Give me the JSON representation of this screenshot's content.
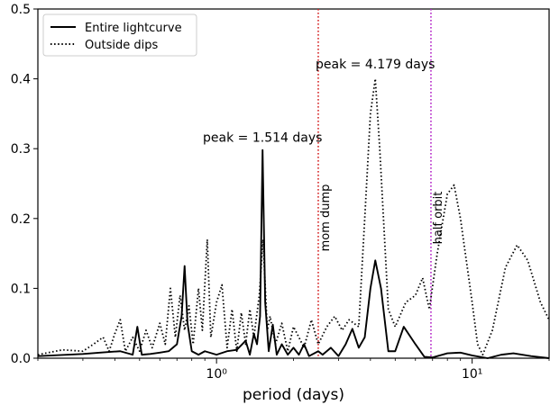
{
  "chart_data": {
    "type": "line",
    "xscale": "log",
    "xlim": [
      0.2,
      20
    ],
    "ylim": [
      0,
      0.5
    ],
    "xlabel": "period (days)",
    "ylabel": "",
    "grid": false,
    "legend_position": "top-left",
    "x_major_ticks": [
      1,
      10
    ],
    "x_major_tick_labels": [
      "10⁰",
      "10¹"
    ],
    "y_ticks": [
      0.0,
      0.1,
      0.2,
      0.3,
      0.4,
      0.5
    ],
    "y_tick_labels": [
      "0.0",
      "0.1",
      "0.2",
      "0.3",
      "0.4",
      "0.5"
    ],
    "series": [
      {
        "name": "Entire lightcurve",
        "style": "solid",
        "color": "#000000",
        "points": [
          [
            0.2,
            0.003
          ],
          [
            0.3,
            0.006
          ],
          [
            0.35,
            0.008
          ],
          [
            0.42,
            0.01
          ],
          [
            0.47,
            0.005
          ],
          [
            0.49,
            0.045
          ],
          [
            0.51,
            0.005
          ],
          [
            0.55,
            0.006
          ],
          [
            0.6,
            0.008
          ],
          [
            0.65,
            0.01
          ],
          [
            0.7,
            0.02
          ],
          [
            0.73,
            0.06
          ],
          [
            0.75,
            0.132
          ],
          [
            0.77,
            0.05
          ],
          [
            0.8,
            0.01
          ],
          [
            0.85,
            0.005
          ],
          [
            0.9,
            0.01
          ],
          [
            1.0,
            0.005
          ],
          [
            1.1,
            0.01
          ],
          [
            1.2,
            0.012
          ],
          [
            1.3,
            0.025
          ],
          [
            1.35,
            0.005
          ],
          [
            1.4,
            0.035
          ],
          [
            1.44,
            0.02
          ],
          [
            1.48,
            0.06
          ],
          [
            1.514,
            0.298
          ],
          [
            1.55,
            0.08
          ],
          [
            1.6,
            0.01
          ],
          [
            1.66,
            0.048
          ],
          [
            1.72,
            0.005
          ],
          [
            1.8,
            0.02
          ],
          [
            1.9,
            0.005
          ],
          [
            2.0,
            0.015
          ],
          [
            2.1,
            0.005
          ],
          [
            2.2,
            0.02
          ],
          [
            2.3,
            0.003
          ],
          [
            2.5,
            0.01
          ],
          [
            2.6,
            0.005
          ],
          [
            2.8,
            0.015
          ],
          [
            3.0,
            0.003
          ],
          [
            3.2,
            0.02
          ],
          [
            3.4,
            0.042
          ],
          [
            3.6,
            0.015
          ],
          [
            3.8,
            0.03
          ],
          [
            4.0,
            0.1
          ],
          [
            4.179,
            0.14
          ],
          [
            4.4,
            0.1
          ],
          [
            4.7,
            0.01
          ],
          [
            5.0,
            0.01
          ],
          [
            5.4,
            0.045
          ],
          [
            6.0,
            0.02
          ],
          [
            6.5,
            0.002
          ],
          [
            7.0,
            0.001
          ],
          [
            8.0,
            0.007
          ],
          [
            9.0,
            0.008
          ],
          [
            10.0,
            0.004
          ],
          [
            11.5,
            0.0
          ],
          [
            13.0,
            0.005
          ],
          [
            14.5,
            0.007
          ],
          [
            17.0,
            0.003
          ],
          [
            20.0,
            0.0
          ]
        ]
      },
      {
        "name": "Outside dips",
        "style": "dotted",
        "color": "#000000",
        "points": [
          [
            0.2,
            0.005
          ],
          [
            0.25,
            0.012
          ],
          [
            0.3,
            0.01
          ],
          [
            0.33,
            0.02
          ],
          [
            0.36,
            0.03
          ],
          [
            0.38,
            0.01
          ],
          [
            0.4,
            0.035
          ],
          [
            0.42,
            0.055
          ],
          [
            0.44,
            0.01
          ],
          [
            0.47,
            0.03
          ],
          [
            0.5,
            0.01
          ],
          [
            0.53,
            0.04
          ],
          [
            0.56,
            0.015
          ],
          [
            0.6,
            0.05
          ],
          [
            0.63,
            0.02
          ],
          [
            0.66,
            0.1
          ],
          [
            0.69,
            0.03
          ],
          [
            0.72,
            0.09
          ],
          [
            0.75,
            0.04
          ],
          [
            0.78,
            0.075
          ],
          [
            0.81,
            0.02
          ],
          [
            0.85,
            0.1
          ],
          [
            0.88,
            0.04
          ],
          [
            0.92,
            0.17
          ],
          [
            0.95,
            0.03
          ],
          [
            1.0,
            0.08
          ],
          [
            1.05,
            0.105
          ],
          [
            1.1,
            0.015
          ],
          [
            1.15,
            0.07
          ],
          [
            1.2,
            0.01
          ],
          [
            1.25,
            0.065
          ],
          [
            1.3,
            0.02
          ],
          [
            1.35,
            0.07
          ],
          [
            1.4,
            0.03
          ],
          [
            1.47,
            0.09
          ],
          [
            1.52,
            0.17
          ],
          [
            1.58,
            0.04
          ],
          [
            1.62,
            0.06
          ],
          [
            1.7,
            0.02
          ],
          [
            1.8,
            0.05
          ],
          [
            1.9,
            0.01
          ],
          [
            2.0,
            0.045
          ],
          [
            2.1,
            0.03
          ],
          [
            2.2,
            0.015
          ],
          [
            2.35,
            0.055
          ],
          [
            2.5,
            0.02
          ],
          [
            2.7,
            0.045
          ],
          [
            2.9,
            0.06
          ],
          [
            3.1,
            0.04
          ],
          [
            3.3,
            0.055
          ],
          [
            3.6,
            0.045
          ],
          [
            3.8,
            0.2
          ],
          [
            4.0,
            0.35
          ],
          [
            4.179,
            0.4
          ],
          [
            4.35,
            0.3
          ],
          [
            4.7,
            0.07
          ],
          [
            5.0,
            0.045
          ],
          [
            5.5,
            0.08
          ],
          [
            6.0,
            0.09
          ],
          [
            6.4,
            0.115
          ],
          [
            6.8,
            0.07
          ],
          [
            7.3,
            0.15
          ],
          [
            8.0,
            0.235
          ],
          [
            8.5,
            0.248
          ],
          [
            9.0,
            0.2
          ],
          [
            10.0,
            0.08
          ],
          [
            10.5,
            0.02
          ],
          [
            11.0,
            0.005
          ],
          [
            12.0,
            0.04
          ],
          [
            13.5,
            0.13
          ],
          [
            15.0,
            0.162
          ],
          [
            16.5,
            0.14
          ],
          [
            18.5,
            0.08
          ],
          [
            20.0,
            0.055
          ]
        ]
      }
    ],
    "vertical_lines": [
      {
        "x": 2.5,
        "color": "#d62728",
        "style": "dotted",
        "label": "mom dump"
      },
      {
        "x": 6.9,
        "color": "#b427c8",
        "style": "dotted",
        "label": "half orbit"
      }
    ],
    "annotations": [
      {
        "text": "peak = 1.514 days",
        "x": 1.514,
        "y": 0.31
      },
      {
        "text": "peak = 4.179 days",
        "x": 4.179,
        "y": 0.415
      }
    ]
  }
}
